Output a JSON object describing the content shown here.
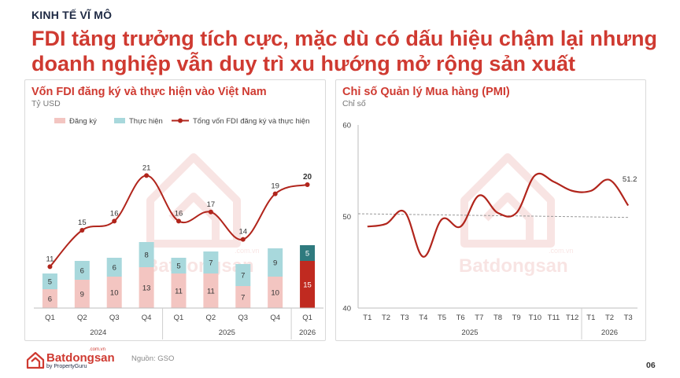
{
  "header": {
    "kicker": "KINH TẾ VĨ MÔ",
    "headline": "FDI tăng trưởng tích cực, mặc dù có dấu hiệu chậm lại nhưng doanh nghiệp vẫn duy trì xu hướng mở rộng sản xuất"
  },
  "footer": {
    "brand": "Batdongsan",
    "brand_com": ".com.vn",
    "brand_sub": "by PropertyGuru",
    "source": "Nguồn: GSO",
    "page": "06"
  },
  "watermark": {
    "brand": "Batdongsan",
    "com": ".com.vn"
  },
  "chart_data": [
    {
      "type": "bar",
      "title": "Vốn FDI đăng ký và thực hiện vào Việt Nam",
      "unit": "Tỷ USD",
      "legend": [
        "Đăng ký",
        "Thực hiện",
        "Tổng vốn FDI đăng ký và thực hiện"
      ],
      "categories": [
        "Q1",
        "Q2",
        "Q3",
        "Q4",
        "Q1",
        "Q2",
        "Q3",
        "Q4",
        "Q1"
      ],
      "groups": [
        {
          "label": "2024",
          "count": 4
        },
        {
          "label": "2025",
          "count": 4
        },
        {
          "label": "2026",
          "count": 1
        }
      ],
      "series": [
        {
          "name": "Đăng ký",
          "values": [
            6,
            9,
            10,
            13,
            11,
            11,
            7,
            10,
            15
          ]
        },
        {
          "name": "Thực hiện",
          "values": [
            5,
            6,
            6,
            8,
            5,
            7,
            7,
            9,
            5
          ]
        },
        {
          "name": "Tổng vốn FDI đăng ký và thực hiện",
          "values": [
            11,
            15,
            16,
            21,
            16,
            17,
            14,
            19,
            20
          ]
        }
      ],
      "colors": {
        "dang_ky": "#f3c5c1",
        "thuc_hien": "#a8d8dc",
        "line": "#b1251c",
        "highlight_dang_ky": "#c02a20",
        "highlight_thuc_hien": "#2f7a7e"
      }
    },
    {
      "type": "line",
      "title": "Chỉ số Quản lý Mua hàng (PMI)",
      "unit": "Chỉ số",
      "categories": [
        "T1",
        "T2",
        "T3",
        "T4",
        "T5",
        "T6",
        "T7",
        "T8",
        "T9",
        "T10",
        "T11",
        "T12",
        "T1",
        "T2",
        "T3"
      ],
      "groups": [
        {
          "label": "2025",
          "count": 12
        },
        {
          "label": "2026",
          "count": 3
        }
      ],
      "yticks": [
        40,
        50,
        60
      ],
      "ylim": [
        40,
        60
      ],
      "values": [
        48.9,
        49.2,
        50.5,
        45.6,
        49.7,
        48.9,
        52.3,
        50.4,
        50.4,
        54.5,
        53.8,
        52.8,
        52.8,
        54.0,
        51.2
      ],
      "end_label": "51.2",
      "trend": [
        50.3,
        49.9
      ],
      "colors": {
        "line": "#b1251c",
        "trend": "#999999"
      }
    }
  ]
}
